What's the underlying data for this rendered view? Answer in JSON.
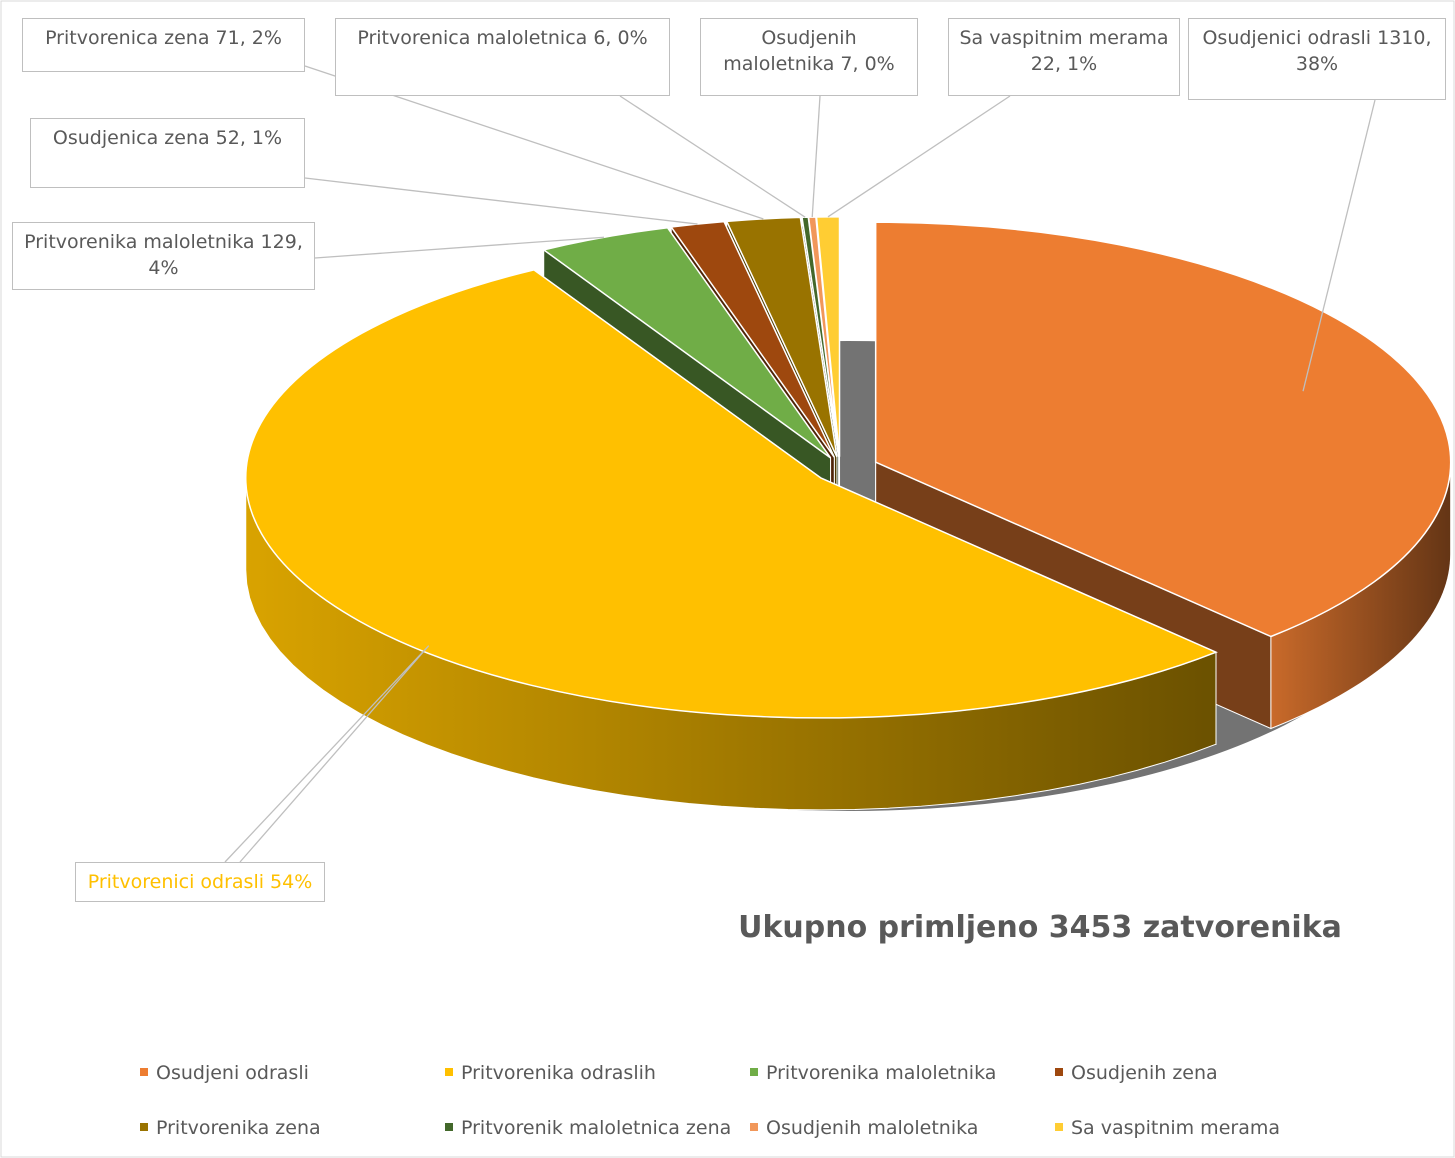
{
  "chart_data": {
    "type": "pie",
    "title": "Ukupno primljeno 3453 zatvorenika",
    "categories": [
      "Osudjeni odrasli",
      "Pritvorenika odraslih",
      "Pritvorenika maloletnika",
      "Osudjenih zena",
      "Pritvorenika zena",
      "Pritvorenik maloletnica zena",
      "Osudjenih maloletnika",
      "Sa vaspitnim merama"
    ],
    "values": [
      1310,
      1856,
      129,
      52,
      71,
      6,
      7,
      22
    ],
    "value_labels": [
      "Osudjenici odrasli 1310, 38%",
      "Pritvorenici odrasli 54%",
      "Pritvorenika maloletnika 129, 4%",
      "Osudjenica zena 52, 1%",
      "Pritvorenica zena 71, 2%",
      "Pritvorenica maloletnica 6, 0%",
      "Osudjenih maloletnika 7, 0%",
      "Sa vaspitnim merama 22, 1%"
    ],
    "colors": [
      "#ED7D31",
      "#FFC000",
      "#70AD47",
      "#9E480E",
      "#997300",
      "#43682B",
      "#F1975A",
      "#FFCD33"
    ]
  }
}
